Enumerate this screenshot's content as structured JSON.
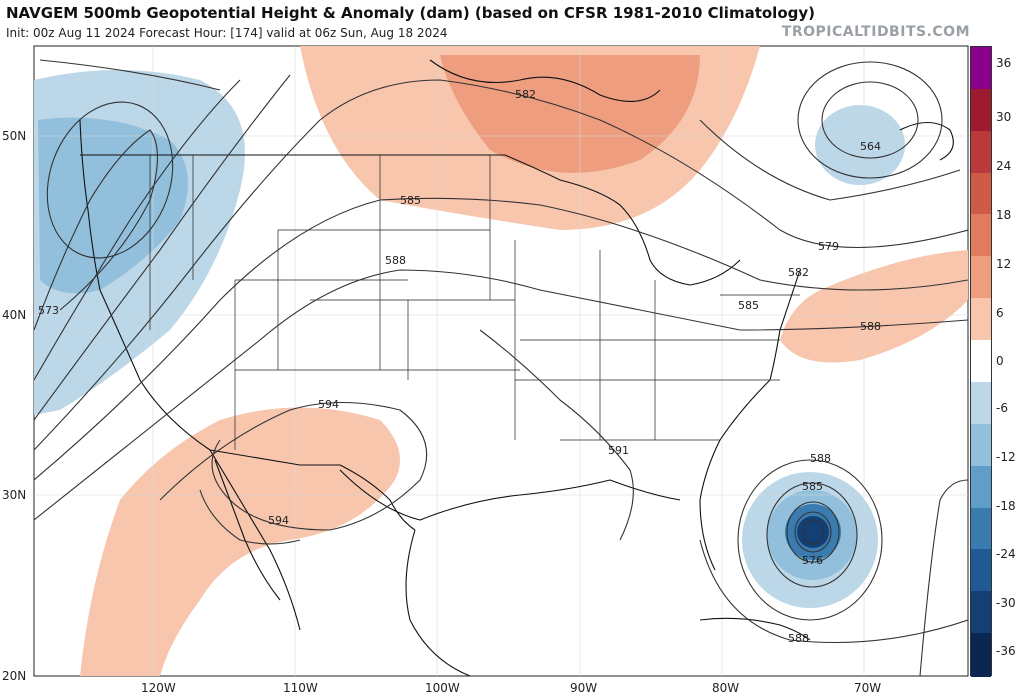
{
  "header": {
    "title": "NAVGEM 500mb Geopotential Height & Anomaly (dam) (based on CFSR 1981-2010 Climatology)",
    "subtitle": "Init: 00z Aug 11 2024   Forecast Hour: [174]   valid at 06z Sun, Aug 18 2024",
    "brand": "TROPICALTIDBITS.COM"
  },
  "axes": {
    "lat_labels": [
      "50N",
      "40N",
      "30N",
      "20N"
    ],
    "lon_labels": [
      "120W",
      "110W",
      "100W",
      "90W",
      "80W",
      "70W"
    ]
  },
  "contour_labels": [
    "582",
    "564",
    "585",
    "579",
    "588",
    "582",
    "585",
    "573",
    "588",
    "594",
    "591",
    "594",
    "588",
    "585",
    "576",
    "588"
  ],
  "colorbar": {
    "labels": [
      "36",
      "30",
      "24",
      "18",
      "12",
      "6",
      "0",
      "-6",
      "-12",
      "-18",
      "-24",
      "-30",
      "-36"
    ],
    "colors": [
      "#8b008b",
      "#9c1b2f",
      "#b83a3a",
      "#cf5a45",
      "#e07b5c",
      "#ee9e7f",
      "#f7c6ad",
      "#ffffff",
      "#bcd7e8",
      "#92c0dc",
      "#5f9ec8",
      "#3a7bb0",
      "#1f5a93",
      "#133f74",
      "#0a2752"
    ]
  }
}
